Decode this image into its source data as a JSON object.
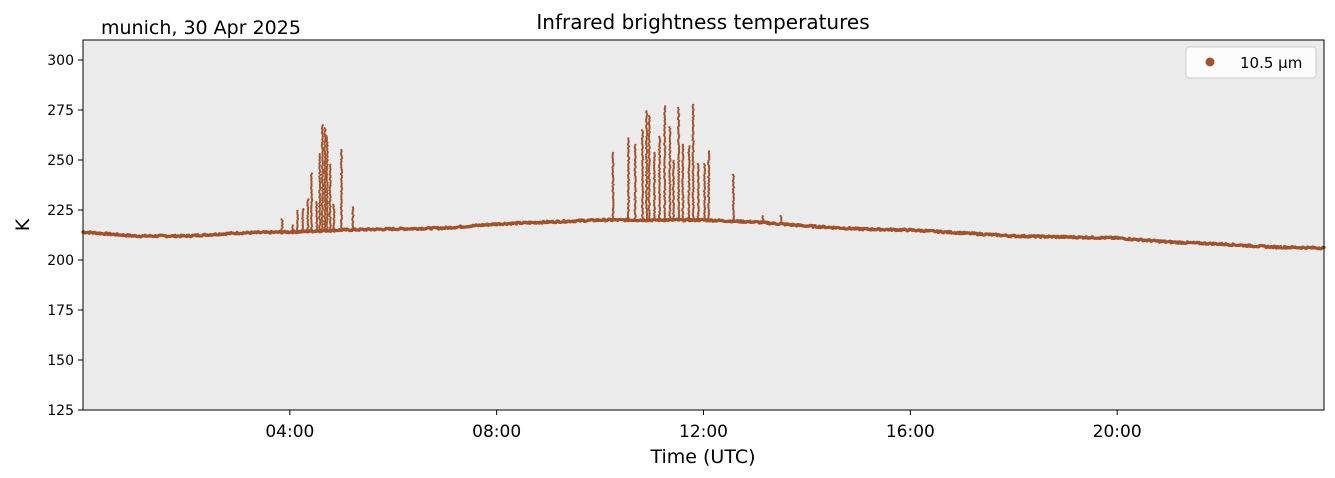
{
  "chart_data": {
    "type": "scatter",
    "title": "Infrared brightness temperatures",
    "subtitle": "munich, 30 Apr 2025",
    "xlabel": "Time (UTC)",
    "ylabel": "K",
    "x_unit": "hours UTC",
    "xlim": [
      0,
      24
    ],
    "ylim": [
      125,
      310
    ],
    "x_ticks": [
      {
        "value": 4,
        "label": "04:00"
      },
      {
        "value": 8,
        "label": "08:00"
      },
      {
        "value": 12,
        "label": "12:00"
      },
      {
        "value": 16,
        "label": "16:00"
      },
      {
        "value": 20,
        "label": "20:00"
      }
    ],
    "y_ticks": [
      125,
      150,
      175,
      200,
      225,
      250,
      275,
      300
    ],
    "grid": false,
    "legend_position": "top-right",
    "background_color": "#ebebeb",
    "series": [
      {
        "name": "10.5 µm",
        "color": "#a0522d",
        "baseline": [
          [
            0.0,
            214
          ],
          [
            0.5,
            213
          ],
          [
            1.0,
            212
          ],
          [
            2.0,
            212
          ],
          [
            3.0,
            213.5
          ],
          [
            4.0,
            214
          ],
          [
            5.0,
            215
          ],
          [
            6.0,
            215.5
          ],
          [
            7.0,
            216
          ],
          [
            8.0,
            218
          ],
          [
            9.0,
            219
          ],
          [
            10.0,
            220
          ],
          [
            11.0,
            220
          ],
          [
            12.0,
            220
          ],
          [
            13.0,
            219
          ],
          [
            14.0,
            217
          ],
          [
            15.0,
            215.5
          ],
          [
            16.0,
            215
          ],
          [
            17.0,
            213.5
          ],
          [
            18.0,
            212
          ],
          [
            19.0,
            211.5
          ],
          [
            20.0,
            211
          ],
          [
            21.0,
            209
          ],
          [
            22.0,
            208
          ],
          [
            23.0,
            206.5
          ],
          [
            24.0,
            206
          ]
        ],
        "spikes": [
          [
            3.85,
            221
          ],
          [
            4.05,
            218
          ],
          [
            4.15,
            225
          ],
          [
            4.25,
            226
          ],
          [
            4.35,
            231
          ],
          [
            4.42,
            244
          ],
          [
            4.52,
            229
          ],
          [
            4.58,
            253
          ],
          [
            4.63,
            268
          ],
          [
            4.68,
            266
          ],
          [
            4.72,
            262
          ],
          [
            4.78,
            248
          ],
          [
            4.85,
            228
          ],
          [
            5.0,
            255
          ],
          [
            5.22,
            227
          ],
          [
            10.25,
            254
          ],
          [
            10.55,
            261
          ],
          [
            10.68,
            258
          ],
          [
            10.82,
            265
          ],
          [
            10.9,
            275
          ],
          [
            10.95,
            272
          ],
          [
            11.05,
            254
          ],
          [
            11.15,
            262
          ],
          [
            11.25,
            277
          ],
          [
            11.35,
            267
          ],
          [
            11.42,
            250
          ],
          [
            11.52,
            276
          ],
          [
            11.6,
            258
          ],
          [
            11.72,
            257
          ],
          [
            11.8,
            278
          ],
          [
            11.9,
            248
          ],
          [
            12.02,
            248
          ],
          [
            12.1,
            255
          ],
          [
            12.58,
            243
          ],
          [
            13.15,
            222
          ],
          [
            13.5,
            222
          ]
        ]
      }
    ]
  }
}
